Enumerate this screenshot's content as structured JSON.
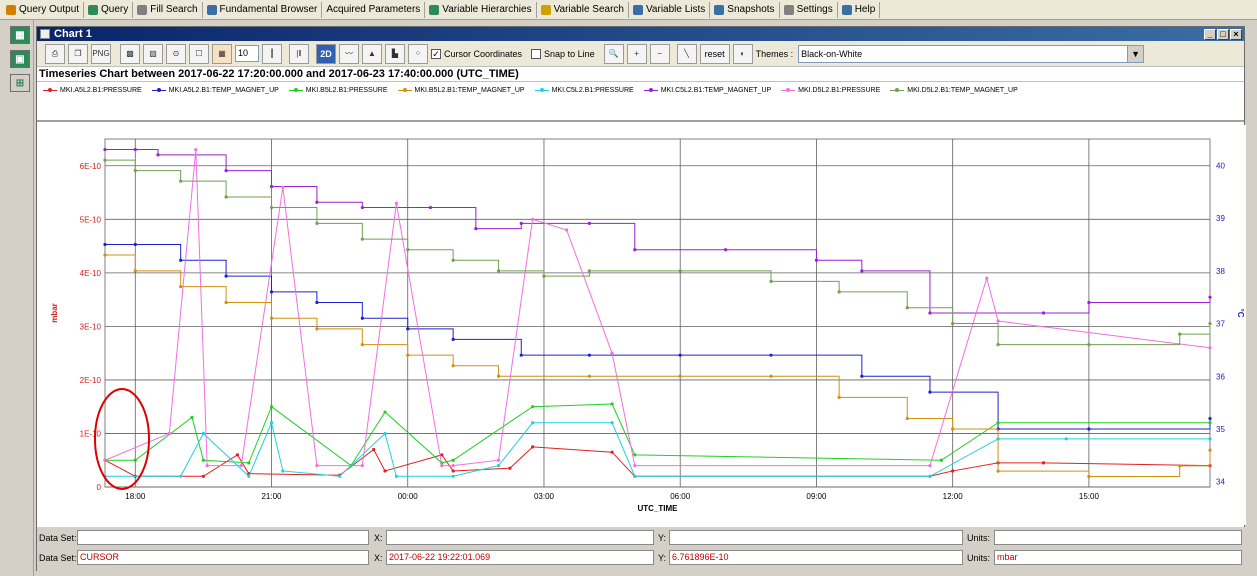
{
  "menu": [
    {
      "label": "Query Output",
      "icon": "chart-icon",
      "color": "#d08000"
    },
    {
      "label": "Query",
      "icon": "query-icon",
      "color": "#2e8b57"
    },
    {
      "label": "Fill Search",
      "icon": "fill-search-icon",
      "color": "#808080"
    },
    {
      "label": "Fundamental Browser",
      "icon": "browser-icon",
      "color": "#3a6ea5"
    },
    {
      "label": "Acquired Parameters",
      "icon": "",
      "color": ""
    },
    {
      "label": "Variable Hierarchies",
      "icon": "hierarchy-icon",
      "color": "#2e8b57"
    },
    {
      "label": "Variable Search",
      "icon": "search-icon",
      "color": "#d0a000"
    },
    {
      "label": "Variable Lists",
      "icon": "list-icon",
      "color": "#3a6ea5"
    },
    {
      "label": "Snapshots",
      "icon": "snapshot-icon",
      "color": "#3a6ea5"
    },
    {
      "label": "Settings",
      "icon": "gear-icon",
      "color": "#808080"
    },
    {
      "label": "Help",
      "icon": "help-icon",
      "color": "#3a6ea5"
    }
  ],
  "window": {
    "title": "Chart 1"
  },
  "toolbar": {
    "png_label": "PNG",
    "grid_value": "10",
    "mode_label": "2D",
    "cursor_coordinates_label": "Cursor Coordinates",
    "cursor_coordinates_checked": true,
    "snap_to_line_label": "Snap to Line",
    "snap_to_line_checked": false,
    "reset_label": "reset",
    "themes_label": "Themes :",
    "theme_value": "Black-on-White"
  },
  "chart_title": "Timeseries Chart between 2017-06-22 17:20:00.000 and 2017-06-23 17:40:00.000 (UTC_TIME)",
  "status": {
    "row1": {
      "dataset_label": "Data Set:",
      "dataset_value": "",
      "x_label": "X:",
      "x_value": "",
      "y_label": "Y:",
      "y_value": "",
      "units_label": "Units:",
      "units_value": ""
    },
    "row2": {
      "dataset_label": "Data Set:",
      "dataset_value": "CURSOR",
      "x_label": "X:",
      "x_value": "2017-06-22 19:22:01.069",
      "y_label": "Y:",
      "y_value": "6.761896E-10",
      "units_label": "Units:",
      "units_value": "mbar"
    }
  },
  "chart_data": {
    "type": "line",
    "title": "Timeseries Chart between 2017-06-22 17:20:00.000 and 2017-06-23 17:40:00.000 (UTC_TIME)",
    "xlabel": "UTC_TIME",
    "ylabel_left": "mbar",
    "ylabel_right": "°C",
    "x_ticks": [
      "18:00",
      "21:00",
      "00:00",
      "03:00",
      "06:00",
      "09:00",
      "12:00",
      "15:00"
    ],
    "y_left_ticks": [
      "0",
      "1E-10",
      "2E-10",
      "3E-10",
      "4E-10",
      "5E-10",
      "6E-10"
    ],
    "y_right_ticks": [
      "34",
      "35",
      "36",
      "37",
      "38",
      "39",
      "40"
    ],
    "x_range": [
      "2017-06-22 17:20",
      "2017-06-23 17:40"
    ],
    "y_left_range": [
      0,
      6.5e-10
    ],
    "y_right_range": [
      33.9,
      40.5
    ],
    "grid": true,
    "legend_position": "top",
    "series": [
      {
        "name": "MKI.A5L2.B1:PRESSURE",
        "axis": "left",
        "color": "#e02020",
        "x": [
          "2017-06-22 17:20",
          "2017-06-22 18:00",
          "2017-06-22 19:30",
          "2017-06-22 20:15",
          "2017-06-22 20:30",
          "2017-06-22 22:30",
          "2017-06-22 23:15",
          "2017-06-22 23:30",
          "2017-06-23 00:45",
          "2017-06-23 01:00",
          "2017-06-23 02:15",
          "2017-06-23 02:45",
          "2017-06-23 04:30",
          "2017-06-23 05:00",
          "2017-06-23 11:30",
          "2017-06-23 12:00",
          "2017-06-23 13:00",
          "2017-06-23 14:00",
          "2017-06-23 17:40"
        ],
        "y": [
          5e-11,
          2e-11,
          2e-11,
          6e-11,
          2.5e-11,
          2.2e-11,
          7e-11,
          3e-11,
          6e-11,
          3e-11,
          3.5e-11,
          7.5e-11,
          6.5e-11,
          2e-11,
          2e-11,
          3e-11,
          4.5e-11,
          4.5e-11,
          4e-11
        ]
      },
      {
        "name": "MKI.A5L2.B1:TEMP_MAGNET_UP",
        "axis": "right",
        "color": "#2020d0",
        "x": [
          "2017-06-22 17:20",
          "2017-06-22 18:00",
          "2017-06-22 19:00",
          "2017-06-22 20:00",
          "2017-06-22 21:00",
          "2017-06-22 22:00",
          "2017-06-22 23:00",
          "2017-06-23 00:00",
          "2017-06-23 01:00",
          "2017-06-23 02:30",
          "2017-06-23 04:00",
          "2017-06-23 06:00",
          "2017-06-23 08:00",
          "2017-06-23 10:00",
          "2017-06-23 11:30",
          "2017-06-23 13:00",
          "2017-06-23 15:00",
          "2017-06-23 17:40"
        ],
        "y": [
          38.5,
          38.5,
          38.2,
          37.9,
          37.6,
          37.4,
          37.1,
          36.9,
          36.7,
          36.4,
          36.4,
          36.4,
          36.4,
          36.0,
          35.7,
          35.0,
          35.0,
          35.2
        ]
      },
      {
        "name": "MKI.B5L2.B1:PRESSURE",
        "axis": "left",
        "color": "#20d020",
        "x": [
          "2017-06-22 17:20",
          "2017-06-22 18:00",
          "2017-06-22 19:15",
          "2017-06-22 19:30",
          "2017-06-22 20:30",
          "2017-06-22 21:00",
          "2017-06-22 22:45",
          "2017-06-22 23:30",
          "2017-06-23 00:45",
          "2017-06-23 01:00",
          "2017-06-23 02:45",
          "2017-06-23 04:30",
          "2017-06-23 05:00",
          "2017-06-23 11:45",
          "2017-06-23 13:00",
          "2017-06-23 17:40"
        ],
        "y": [
          5e-11,
          5e-11,
          1.3e-10,
          5e-11,
          4.5e-11,
          1.5e-10,
          4e-11,
          1.4e-10,
          4.5e-11,
          5e-11,
          1.5e-10,
          1.55e-10,
          6e-11,
          5e-11,
          1.2e-10,
          1.2e-10
        ]
      },
      {
        "name": "MKI.B5L2.B1:TEMP_MAGNET_UP",
        "axis": "right",
        "color": "#d09010",
        "x": [
          "2017-06-22 17:20",
          "2017-06-22 18:00",
          "2017-06-22 19:00",
          "2017-06-22 20:00",
          "2017-06-22 21:00",
          "2017-06-22 22:00",
          "2017-06-22 23:00",
          "2017-06-23 00:00",
          "2017-06-23 01:00",
          "2017-06-23 02:00",
          "2017-06-23 04:00",
          "2017-06-23 06:00",
          "2017-06-23 08:00",
          "2017-06-23 09:30",
          "2017-06-23 11:00",
          "2017-06-23 12:00",
          "2017-06-23 13:00",
          "2017-06-23 15:00",
          "2017-06-23 17:00",
          "2017-06-23 17:40"
        ],
        "y": [
          38.3,
          38.0,
          37.7,
          37.4,
          37.1,
          36.9,
          36.6,
          36.4,
          36.2,
          36.0,
          36.0,
          36.0,
          36.0,
          35.6,
          35.2,
          35.0,
          34.2,
          34.1,
          34.3,
          34.6
        ]
      },
      {
        "name": "MKI.C5L2.B1:PRESSURE",
        "axis": "left",
        "color": "#20d0e0",
        "x": [
          "2017-06-22 17:20",
          "2017-06-22 19:00",
          "2017-06-22 19:30",
          "2017-06-22 20:30",
          "2017-06-22 21:00",
          "2017-06-22 21:15",
          "2017-06-22 22:30",
          "2017-06-22 23:30",
          "2017-06-22 23:45",
          "2017-06-23 01:00",
          "2017-06-23 02:00",
          "2017-06-23 02:45",
          "2017-06-23 04:30",
          "2017-06-23 05:00",
          "2017-06-23 11:30",
          "2017-06-23 13:00",
          "2017-06-23 14:30",
          "2017-06-23 17:40"
        ],
        "y": [
          2e-11,
          2e-11,
          1e-10,
          2e-11,
          1.2e-10,
          3e-11,
          2e-11,
          1e-10,
          2e-11,
          2e-11,
          4e-11,
          1.2e-10,
          1.2e-10,
          2e-11,
          2e-11,
          9e-11,
          9e-11,
          9e-11
        ]
      },
      {
        "name": "MKI.C5L2.B1:TEMP_MAGNET_UP",
        "axis": "right",
        "color": "#9a20d0",
        "x": [
          "2017-06-22 17:20",
          "2017-06-22 18:00",
          "2017-06-22 18:30",
          "2017-06-22 20:00",
          "2017-06-22 21:00",
          "2017-06-22 22:00",
          "2017-06-22 23:00",
          "2017-06-23 00:30",
          "2017-06-23 01:30",
          "2017-06-23 02:30",
          "2017-06-23 04:00",
          "2017-06-23 05:00",
          "2017-06-23 07:00",
          "2017-06-23 09:00",
          "2017-06-23 10:00",
          "2017-06-23 11:30",
          "2017-06-23 14:00",
          "2017-06-23 15:00",
          "2017-06-23 17:40"
        ],
        "y": [
          40.3,
          40.3,
          40.2,
          39.9,
          39.6,
          39.3,
          39.2,
          39.2,
          38.8,
          38.9,
          38.9,
          38.4,
          38.4,
          38.2,
          38.0,
          37.2,
          37.2,
          37.4,
          37.5
        ]
      },
      {
        "name": "MKI.D5L2.B1:PRESSURE",
        "axis": "left",
        "color": "#f070e0",
        "x": [
          "2017-06-22 17:20",
          "2017-06-22 18:45",
          "2017-06-22 19:20",
          "2017-06-22 19:35",
          "2017-06-22 20:20",
          "2017-06-22 21:15",
          "2017-06-22 22:00",
          "2017-06-22 23:00",
          "2017-06-22 23:45",
          "2017-06-23 00:45",
          "2017-06-23 01:00",
          "2017-06-23 02:00",
          "2017-06-23 02:45",
          "2017-06-23 03:30",
          "2017-06-23 04:30",
          "2017-06-23 05:00",
          "2017-06-23 11:30",
          "2017-06-23 12:45",
          "2017-06-23 13:00",
          "2017-06-23 17:40"
        ],
        "y": [
          5e-11,
          1e-10,
          6.3e-10,
          4e-11,
          4e-11,
          5.6e-10,
          4e-11,
          4e-11,
          5.3e-10,
          4e-11,
          4e-11,
          5e-11,
          5e-10,
          4.8e-10,
          2.5e-10,
          4e-11,
          4e-11,
          3.9e-10,
          3.1e-10,
          2.6e-10
        ]
      },
      {
        "name": "MKI.D5L2.B1:TEMP_MAGNET_UP",
        "axis": "right",
        "color": "#70a050",
        "x": [
          "2017-06-22 17:20",
          "2017-06-22 18:00",
          "2017-06-22 19:00",
          "2017-06-22 20:00",
          "2017-06-22 21:00",
          "2017-06-22 22:00",
          "2017-06-22 23:00",
          "2017-06-23 00:00",
          "2017-06-23 01:00",
          "2017-06-23 02:00",
          "2017-06-23 03:00",
          "2017-06-23 04:00",
          "2017-06-23 06:00",
          "2017-06-23 08:00",
          "2017-06-23 09:30",
          "2017-06-23 11:00",
          "2017-06-23 12:00",
          "2017-06-23 13:00",
          "2017-06-23 15:00",
          "2017-06-23 17:00",
          "2017-06-23 17:40"
        ],
        "y": [
          40.1,
          39.9,
          39.7,
          39.4,
          39.2,
          38.9,
          38.6,
          38.4,
          38.2,
          38.0,
          37.9,
          38.0,
          38.0,
          37.8,
          37.6,
          37.3,
          37.0,
          36.6,
          36.6,
          36.8,
          37.0
        ]
      }
    ]
  }
}
